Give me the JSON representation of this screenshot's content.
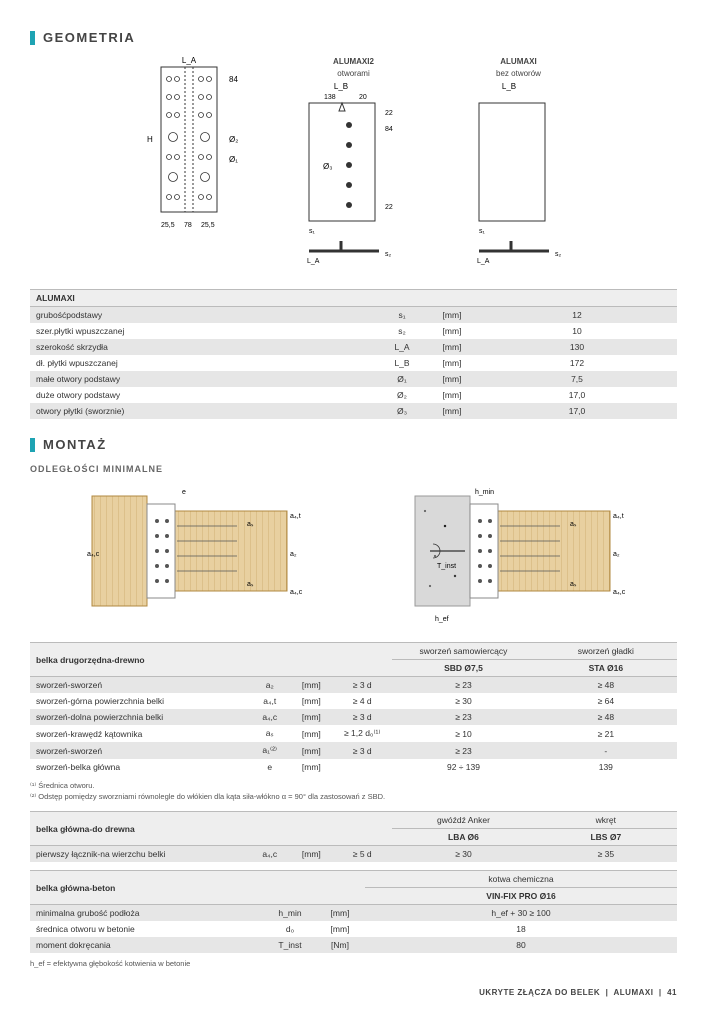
{
  "sections": {
    "geometria_title": "GEOMETRIA",
    "montaz_title": "MONTAŻ",
    "montaz_subtitle": "ODLEGŁOŚCI MINIMALNE"
  },
  "geom_diagrams": {
    "left": {
      "L_A": "L_A",
      "H": "H",
      "phi2": "Ø₂",
      "phi1": "Ø₁",
      "top_dim": "84",
      "bottom_left": "25,5",
      "bottom_mid": "78",
      "bottom_right": "25,5"
    },
    "mid": {
      "caption1": "ALUMAXI2",
      "caption2": "otworami",
      "L_B": "L_B",
      "top1": "138",
      "top2": "20",
      "r22a": "22",
      "r84": "84",
      "r22b": "22",
      "phi3": "Ø₃",
      "s1": "s₁",
      "s2": "s₂",
      "LA": "L_A"
    },
    "right": {
      "caption1": "ALUMAXI",
      "caption2": "bez otworów",
      "L_B": "L_B",
      "s1": "s₁",
      "s2": "s₂",
      "LA": "L_A"
    }
  },
  "table_alumaxi": {
    "header": "ALUMAXI",
    "rows": [
      {
        "label": "grubośćpodstawy",
        "sym": "s₁",
        "unit": "[mm]",
        "val": "12",
        "alt": true
      },
      {
        "label": "szer.płytki wpuszczanej",
        "sym": "s₂",
        "unit": "[mm]",
        "val": "10",
        "alt": false
      },
      {
        "label": "szerokość skrzydła",
        "sym": "L_A",
        "unit": "[mm]",
        "val": "130",
        "alt": true
      },
      {
        "label": "dł. płytki wpuszczanej",
        "sym": "L_B",
        "unit": "[mm]",
        "val": "172",
        "alt": false
      },
      {
        "label": "małe otwory podstawy",
        "sym": "Ø₁",
        "unit": "[mm]",
        "val": "7,5",
        "alt": true
      },
      {
        "label": "duże otwory podstawy",
        "sym": "Ø₂",
        "unit": "[mm]",
        "val": "17,0",
        "alt": false
      },
      {
        "label": "otwory płytki (sworznie)",
        "sym": "Ø₃",
        "unit": "[mm]",
        "val": "17,0",
        "alt": true
      }
    ]
  },
  "table_belka_druga": {
    "header": "belka drugorzędna-drewno",
    "col1": "sworzeń samowiercący",
    "col1sub": "SBD Ø7,5",
    "col2": "sworzeń gładki",
    "col2sub": "STA Ø16",
    "rows": [
      {
        "label": "sworzeń-sworzeń",
        "sym": "a₂",
        "unit": "[mm]",
        "cond": "≥ 3 d",
        "v1": "≥ 23",
        "v2": "≥ 48",
        "alt": true
      },
      {
        "label": "sworzeń-górna powierzchnia belki",
        "sym": "a₄,t",
        "unit": "[mm]",
        "cond": "≥ 4 d",
        "v1": "≥ 30",
        "v2": "≥ 64",
        "alt": false
      },
      {
        "label": "sworzeń-dolna powierzchnia belki",
        "sym": "a₄,c",
        "unit": "[mm]",
        "cond": "≥ 3 d",
        "v1": "≥ 23",
        "v2": "≥ 48",
        "alt": true
      },
      {
        "label": "sworzeń-krawędź kątownika",
        "sym": "aₛ",
        "unit": "[mm]",
        "cond": "≥ 1,2 d₀⁽¹⁾",
        "v1": "≥ 10",
        "v2": "≥ 21",
        "alt": false
      },
      {
        "label": "sworzeń-sworzeń",
        "sym": "a₁⁽²⁾",
        "unit": "[mm]",
        "cond": "≥ 3 d",
        "v1": "≥ 23",
        "v2": "-",
        "alt": true
      },
      {
        "label": "sworzeń-belka główna",
        "sym": "e",
        "unit": "[mm]",
        "cond": "",
        "v1": "92 ÷ 139",
        "v2": "139",
        "alt": false
      }
    ],
    "foot1": "⁽¹⁾ Średnica otworu.",
    "foot2": "⁽²⁾ Odstęp pomiędzy sworzniami równolegle do włókien dla kąta siła-włókno α = 90° dla zastosowań z SBD."
  },
  "table_glowna_drewno": {
    "header": "belka główna-do drewna",
    "col1": "gwóźdź Anker",
    "col1sub": "LBA Ø6",
    "col2": "wkręt",
    "col2sub": "LBS Ø7",
    "rows": [
      {
        "label": "pierwszy łącznik-na wierzchu belki",
        "sym": "a₄,c",
        "unit": "[mm]",
        "cond": "≥ 5 d",
        "v1": "≥ 30",
        "v2": "≥ 35",
        "alt": true
      }
    ]
  },
  "table_glowna_beton": {
    "header": "belka główna-beton",
    "col1": "kotwa chemiczna",
    "col1sub": "VIN-FIX PRO Ø16",
    "rows": [
      {
        "label": "minimalna grubość podłoża",
        "sym": "h_min",
        "unit": "[mm]",
        "v1": "h_ef + 30 ≥ 100",
        "alt": true
      },
      {
        "label": "średnica otworu w betonie",
        "sym": "d₀",
        "unit": "[mm]",
        "v1": "18",
        "alt": false
      },
      {
        "label": "moment dokręcania",
        "sym": "T_inst",
        "unit": "[Nm]",
        "v1": "80",
        "alt": true
      }
    ],
    "foot": "h_ef = efektywna głębokość kotwienia w betonie"
  },
  "footer": {
    "text1": "UKRYTE ZŁĄCZA DO BELEK",
    "text2": "ALUMAXI",
    "page": "41"
  }
}
